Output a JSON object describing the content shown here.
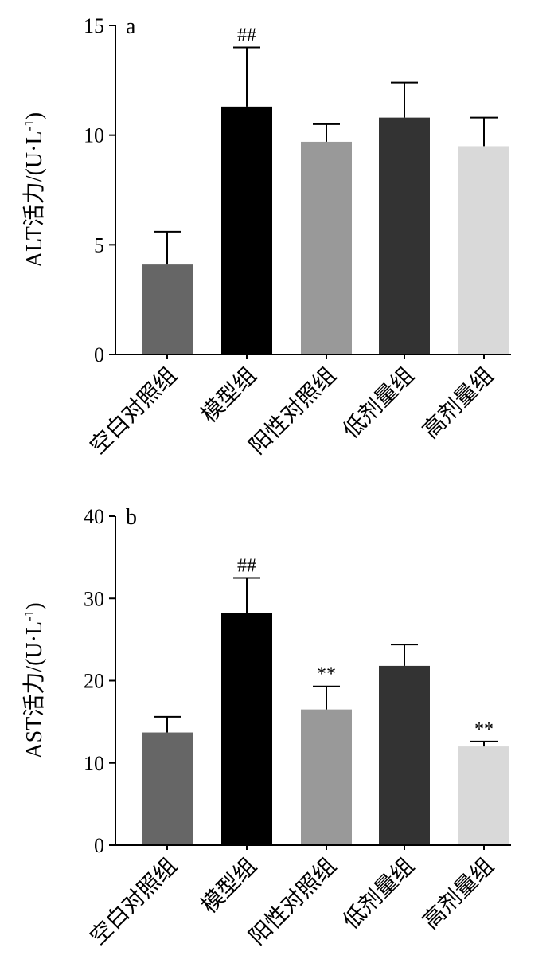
{
  "chart_data": [
    {
      "type": "bar",
      "panel_label": "a",
      "categories": [
        "空白对照组",
        "模型组",
        "阳性对照组",
        "低剂量组",
        "高剂量组"
      ],
      "values": [
        4.1,
        11.3,
        9.7,
        10.8,
        9.5
      ],
      "errors": [
        1.5,
        2.7,
        0.8,
        1.6,
        1.3
      ],
      "annotations": [
        "",
        "##",
        "",
        "",
        ""
      ],
      "colors": [
        "#666666",
        "#000000",
        "#999999",
        "#333333",
        "#d9d9d9"
      ],
      "ylabel": "ALT活力/(U·L-1)",
      "ylabel_main": "ALT活力/(U·L",
      "ylabel_exp": "-1",
      "ylabel_close": ")",
      "ylim": [
        0,
        15
      ],
      "yticks": [
        0,
        5,
        10,
        15
      ],
      "ytick_labels": [
        "0",
        "5",
        "10",
        "15"
      ]
    },
    {
      "type": "bar",
      "panel_label": "b",
      "categories": [
        "空白对照组",
        "模型组",
        "阳性对照组",
        "低剂量组",
        "高剂量组"
      ],
      "values": [
        13.7,
        28.2,
        16.5,
        21.8,
        12.0
      ],
      "errors": [
        1.9,
        4.3,
        2.8,
        2.6,
        0.6
      ],
      "annotations": [
        "",
        "##",
        "**",
        "",
        "**"
      ],
      "colors": [
        "#666666",
        "#000000",
        "#999999",
        "#333333",
        "#d9d9d9"
      ],
      "ylabel": "AST活力/(U·L-1)",
      "ylabel_main": "AST活力/(U·L",
      "ylabel_exp": "-1",
      "ylabel_close": ")",
      "ylim": [
        0,
        40
      ],
      "yticks": [
        0,
        10,
        20,
        30,
        40
      ],
      "ytick_labels": [
        "0",
        "10",
        "20",
        "30",
        "40"
      ]
    }
  ]
}
